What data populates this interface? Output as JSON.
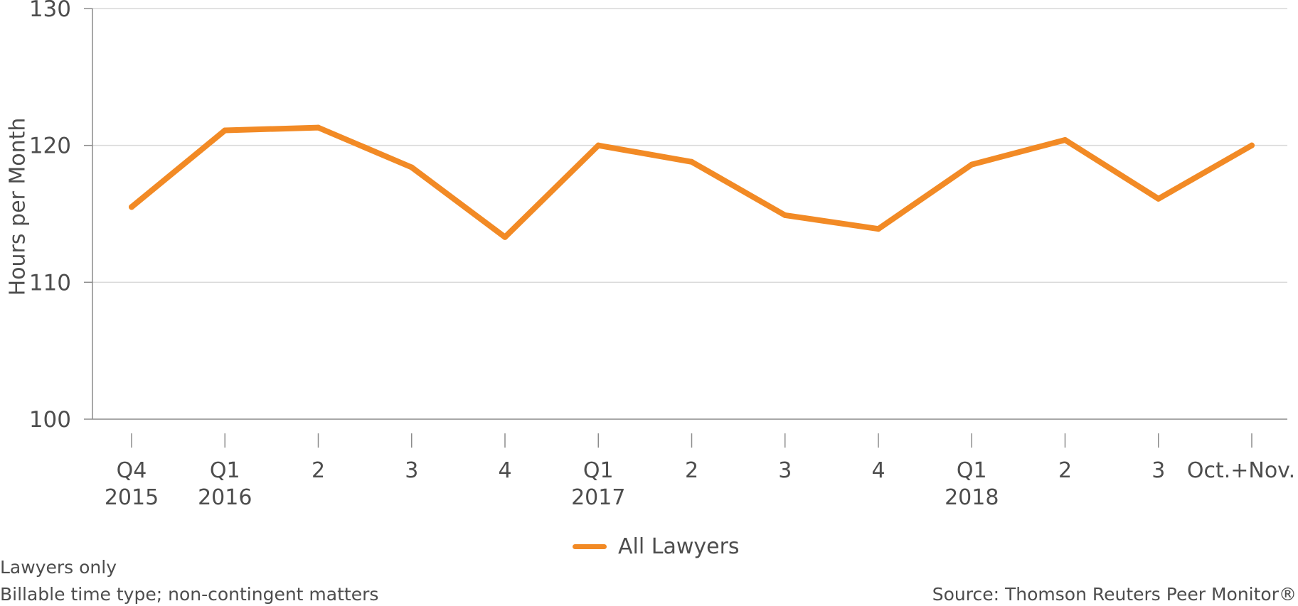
{
  "chart_data": {
    "type": "line",
    "title": "",
    "xlabel": "",
    "ylabel": "Hours per Month",
    "ylim": [
      100,
      130
    ],
    "yticks": [
      100,
      110,
      120,
      130
    ],
    "grid": true,
    "legend_position": "bottom-center",
    "categories": [
      {
        "line1": "Q4",
        "line2": "2015"
      },
      {
        "line1": "Q1",
        "line2": "2016"
      },
      {
        "line1": "2",
        "line2": ""
      },
      {
        "line1": "3",
        "line2": ""
      },
      {
        "line1": "4",
        "line2": ""
      },
      {
        "line1": "Q1",
        "line2": "2017"
      },
      {
        "line1": "2",
        "line2": ""
      },
      {
        "line1": "3",
        "line2": ""
      },
      {
        "line1": "4",
        "line2": ""
      },
      {
        "line1": "Q1",
        "line2": "2018"
      },
      {
        "line1": "2",
        "line2": ""
      },
      {
        "line1": "3",
        "line2": ""
      },
      {
        "line1": "Oct.+Nov.",
        "line2": ""
      }
    ],
    "series": [
      {
        "name": "All Lawyers",
        "color": "#f28a25",
        "values": [
          115.5,
          121.1,
          121.3,
          118.4,
          113.3,
          120.0,
          118.8,
          114.9,
          113.9,
          118.6,
          120.4,
          116.1,
          120.0
        ]
      }
    ]
  },
  "notes": {
    "line1": "Lawyers only",
    "line2": "Billable time type; non-contingent matters",
    "source": "Source: Thomson Reuters Peer Monitor®"
  },
  "colors": {
    "line": "#f28a25",
    "axis": "#8c8c8c",
    "grid": "#d9d9d9",
    "text": "#4d4d4d"
  }
}
